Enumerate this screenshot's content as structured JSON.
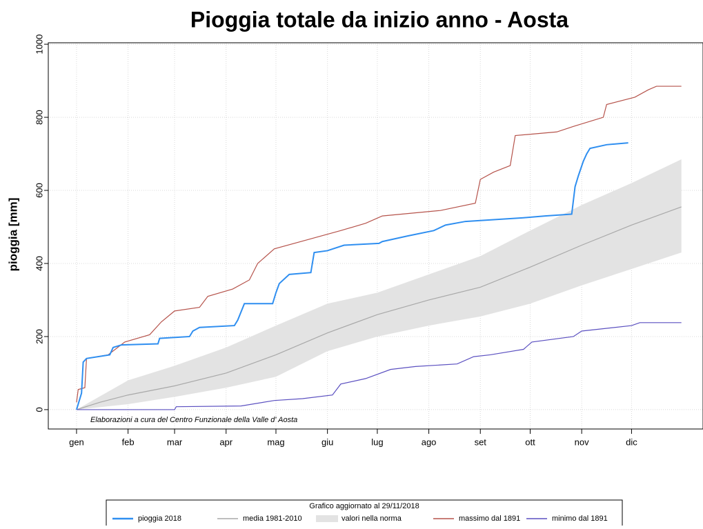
{
  "chart_data": {
    "type": "line",
    "title": "Pioggia totale da inizio anno - Aosta",
    "y_label": "pioggia [mm]",
    "annotation": "Elaborazioni a cura del Centro Funzionale della Valle d' Aosta",
    "legend_title": "Grafico aggiornato al 29/11/2018",
    "xlim": [
      -16,
      378
    ],
    "ylim": [
      -53,
      1004
    ],
    "xticks": [
      {
        "value": 1,
        "label": "gen"
      },
      {
        "value": 32,
        "label": "feb"
      },
      {
        "value": 60,
        "label": "mar"
      },
      {
        "value": 91,
        "label": "apr"
      },
      {
        "value": 121,
        "label": "mag"
      },
      {
        "value": 152,
        "label": "giu"
      },
      {
        "value": 182,
        "label": "lug"
      },
      {
        "value": 213,
        "label": "ago"
      },
      {
        "value": 244,
        "label": "set"
      },
      {
        "value": 274,
        "label": "ott"
      },
      {
        "value": 305,
        "label": "nov"
      },
      {
        "value": 335,
        "label": "dic"
      }
    ],
    "yticks": [
      0,
      200,
      400,
      600,
      800,
      1000
    ],
    "grid": true,
    "band": {
      "name": "valori nella norma",
      "color": "#e3e3e3",
      "x": [
        1,
        32,
        60,
        91,
        121,
        152,
        182,
        213,
        244,
        274,
        305,
        335,
        365
      ],
      "lower": [
        0,
        15,
        35,
        60,
        90,
        160,
        200,
        230,
        255,
        290,
        340,
        385,
        430
      ],
      "upper": [
        0,
        80,
        120,
        170,
        230,
        290,
        320,
        370,
        420,
        490,
        560,
        620,
        685
      ]
    },
    "series": [
      {
        "name": "pioggia 2018",
        "color": "#2e8ef0",
        "x": [
          1,
          4,
          5,
          7,
          21,
          23,
          28,
          50,
          51,
          69,
          71,
          75,
          96,
          98,
          102,
          119,
          121,
          123,
          129,
          142,
          144,
          152,
          162,
          183,
          185,
          200,
          216,
          223,
          235,
          270,
          283,
          299,
          301,
          303,
          306,
          308,
          310,
          320,
          333
        ],
        "values": [
          0,
          45,
          130,
          140,
          150,
          170,
          177,
          180,
          195,
          200,
          215,
          225,
          230,
          245,
          290,
          290,
          320,
          345,
          370,
          375,
          430,
          435,
          450,
          455,
          460,
          475,
          490,
          505,
          515,
          525,
          530,
          535,
          610,
          640,
          680,
          700,
          715,
          725,
          730
        ]
      },
      {
        "name": "media 1981-2010",
        "color": "#a8a8a8",
        "x": [
          1,
          15,
          32,
          60,
          91,
          121,
          152,
          182,
          213,
          244,
          274,
          305,
          335,
          365
        ],
        "values": [
          0,
          20,
          40,
          65,
          100,
          150,
          210,
          260,
          300,
          335,
          390,
          450,
          505,
          555
        ]
      },
      {
        "name": "massimo dal 1891",
        "color": "#b5524a",
        "x": [
          1,
          2,
          6,
          7,
          20,
          30,
          45,
          52,
          60,
          75,
          80,
          95,
          105,
          110,
          120,
          140,
          160,
          175,
          185,
          220,
          241,
          244,
          252,
          262,
          265,
          290,
          300,
          318,
          320,
          337,
          345,
          350,
          365
        ],
        "values": [
          20,
          55,
          60,
          140,
          150,
          185,
          205,
          240,
          270,
          280,
          310,
          330,
          355,
          400,
          440,
          465,
          490,
          510,
          530,
          545,
          565,
          630,
          650,
          668,
          750,
          760,
          775,
          800,
          835,
          855,
          875,
          885,
          885
        ]
      },
      {
        "name": "minimo dal 1891",
        "color": "#5a4fc0",
        "x": [
          1,
          60,
          61,
          100,
          120,
          137,
          155,
          160,
          175,
          190,
          205,
          230,
          240,
          250,
          270,
          275,
          300,
          305,
          335,
          340,
          365
        ],
        "values": [
          0,
          0,
          8,
          10,
          25,
          30,
          40,
          70,
          85,
          110,
          118,
          125,
          145,
          150,
          165,
          185,
          200,
          215,
          230,
          238,
          238
        ]
      }
    ]
  }
}
